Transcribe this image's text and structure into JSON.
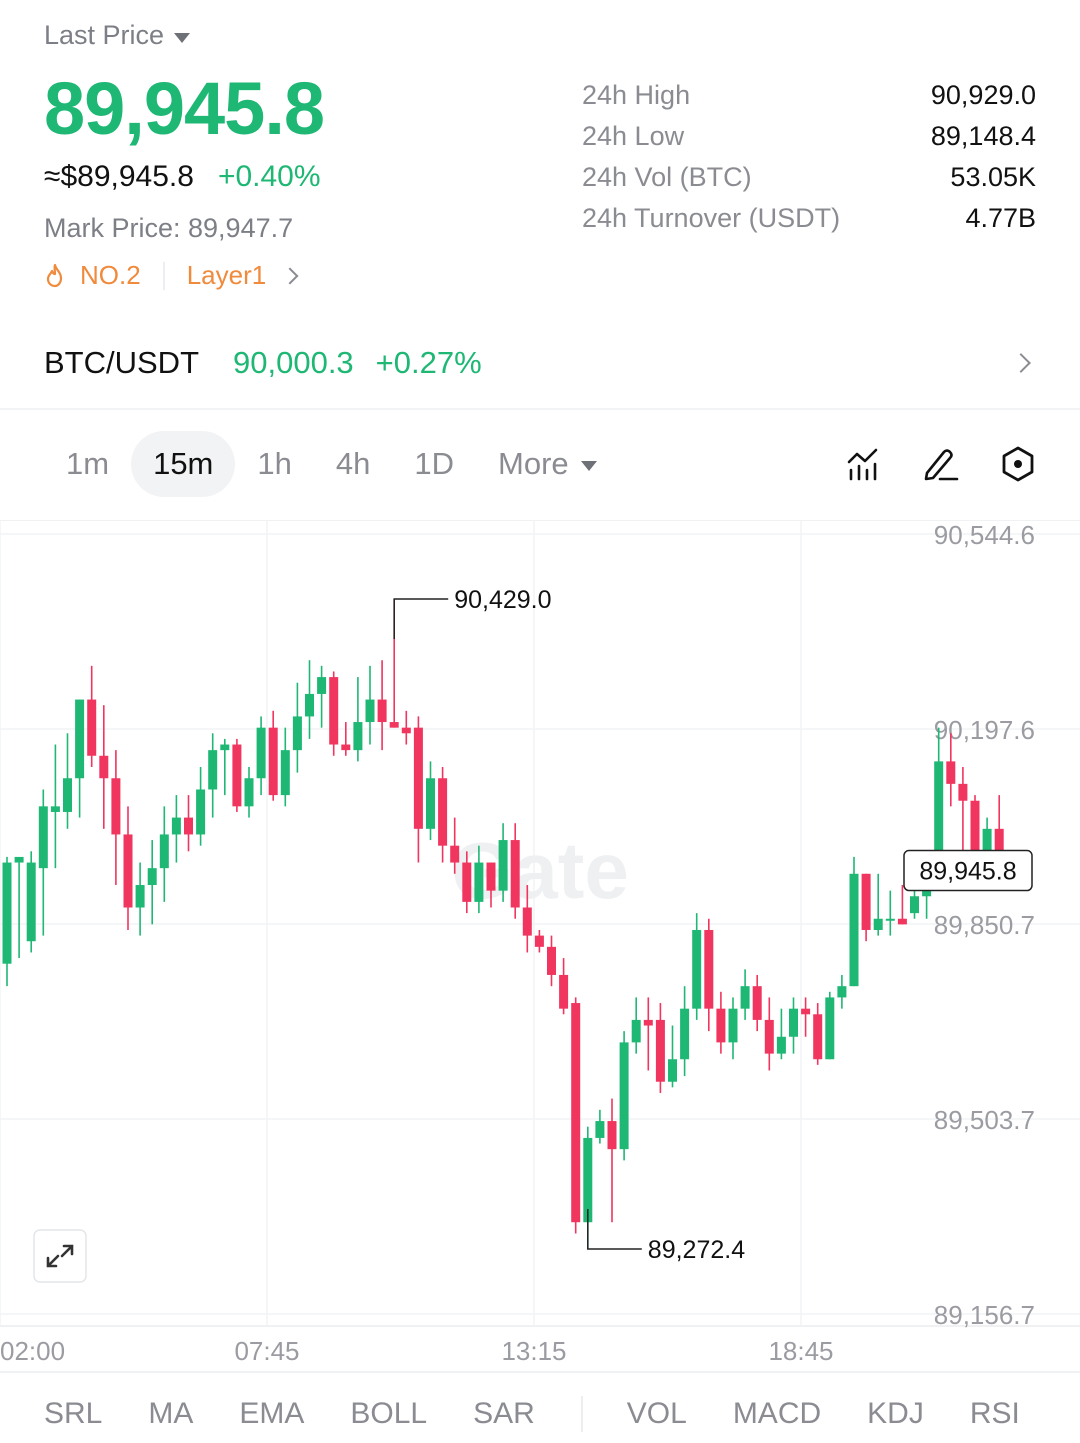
{
  "header": {
    "last_price_label": "Last Price",
    "last_price": "89,945.8",
    "approx_usd": "≈$89,945.8",
    "change_pct": "+0.40%",
    "mark_price": "Mark Price:  89,947.7",
    "rank_tag": "NO.2",
    "category_tag": "Layer1"
  },
  "stats": [
    {
      "label": "24h  High",
      "value": "90,929.0"
    },
    {
      "label": "24h  Low",
      "value": "89,148.4"
    },
    {
      "label": "24h  Vol (BTC)",
      "value": "53.05K"
    },
    {
      "label": "24h  Turnover (USDT)",
      "value": "4.77B"
    }
  ],
  "pair": {
    "name": "BTC/USDT",
    "price": "90,000.3",
    "change": "+0.27%"
  },
  "timeframes": {
    "items": [
      "1m",
      "15m",
      "1h",
      "4h",
      "1D"
    ],
    "active": "15m",
    "more_label": "More"
  },
  "indicators": {
    "main": [
      "SRL",
      "MA",
      "EMA",
      "BOLL",
      "SAR"
    ],
    "sub": [
      "VOL",
      "MACD",
      "KDJ",
      "RSI"
    ]
  },
  "colors": {
    "up": "#1eb774",
    "down": "#f0355f",
    "accent_orange": "#f08a3c"
  },
  "chart_data": {
    "type": "candlestick",
    "watermark": "Gate",
    "y_ticks": [
      "90,544.6",
      "90,197.6",
      "89,850.7",
      "89,503.7",
      "89,156.7"
    ],
    "y_tick_values": [
      90544.6,
      90197.6,
      89850.7,
      89503.7,
      89156.7
    ],
    "x_ticks": [
      "02:00",
      "07:45",
      "13:15",
      "18:45"
    ],
    "max_label": "90,429.0",
    "min_label": "89,272.4",
    "current_label": "89,945.8",
    "current_value": 89945.8,
    "candles": [
      [
        89780,
        89960,
        89740,
        89970
      ],
      [
        89960,
        89970,
        89790,
        89960
      ],
      [
        89820,
        89960,
        89800,
        89980
      ],
      [
        89950,
        90060,
        89830,
        90090
      ],
      [
        90050,
        90060,
        89950,
        90170
      ],
      [
        90050,
        90110,
        90020,
        90190
      ],
      [
        90110,
        90250,
        90040,
        90250
      ],
      [
        90250,
        90150,
        90130,
        90310
      ],
      [
        90150,
        90110,
        90020,
        90240
      ],
      [
        90110,
        90010,
        89920,
        90160
      ],
      [
        90010,
        89880,
        89840,
        90060
      ],
      [
        89880,
        89920,
        89830,
        89960
      ],
      [
        89920,
        89950,
        89850,
        90000
      ],
      [
        89950,
        90010,
        89890,
        90060
      ],
      [
        90010,
        90040,
        89960,
        90080
      ],
      [
        90040,
        90010,
        89980,
        90080
      ],
      [
        90010,
        90090,
        89990,
        90130
      ],
      [
        90090,
        90160,
        90040,
        90190
      ],
      [
        90160,
        90170,
        90080,
        90180
      ],
      [
        90170,
        90060,
        90050,
        90180
      ],
      [
        90060,
        90110,
        90040,
        90130
      ],
      [
        90110,
        90200,
        90080,
        90220
      ],
      [
        90200,
        90080,
        90070,
        90230
      ],
      [
        90080,
        90160,
        90060,
        90200
      ],
      [
        90160,
        90220,
        90120,
        90280
      ],
      [
        90220,
        90260,
        90180,
        90320
      ],
      [
        90260,
        90290,
        90200,
        90310
      ],
      [
        90290,
        90170,
        90150,
        90300
      ],
      [
        90170,
        90160,
        90150,
        90210
      ],
      [
        90160,
        90210,
        90140,
        90290
      ],
      [
        90210,
        90250,
        90170,
        90310
      ],
      [
        90250,
        90210,
        90160,
        90320
      ],
      [
        90210,
        90200,
        90200,
        90429
      ],
      [
        90200,
        90190,
        90170,
        90230
      ],
      [
        90200,
        90020,
        89960,
        90220
      ],
      [
        90020,
        90110,
        90000,
        90140
      ],
      [
        90110,
        89990,
        89960,
        90130
      ],
      [
        89990,
        89960,
        89940,
        90040
      ],
      [
        89960,
        89890,
        89870,
        89980
      ],
      [
        89890,
        89960,
        89870,
        89990
      ],
      [
        89960,
        89910,
        89880,
        89960
      ],
      [
        89910,
        90000,
        89890,
        90030
      ],
      [
        90000,
        89880,
        89860,
        90030
      ],
      [
        89880,
        89830,
        89800,
        89920
      ],
      [
        89830,
        89810,
        89800,
        89840
      ],
      [
        89810,
        89760,
        89740,
        89830
      ],
      [
        89760,
        89700,
        89690,
        89790
      ],
      [
        89710,
        89320,
        89300,
        89720
      ],
      [
        89320,
        89470,
        89272.4,
        89490
      ],
      [
        89470,
        89500,
        89460,
        89520
      ],
      [
        89500,
        89450,
        89320,
        89540
      ],
      [
        89450,
        89640,
        89430,
        89660
      ],
      [
        89640,
        89680,
        89620,
        89720
      ],
      [
        89680,
        89670,
        89590,
        89720
      ],
      [
        89680,
        89570,
        89550,
        89710
      ],
      [
        89570,
        89610,
        89560,
        89670
      ],
      [
        89610,
        89700,
        89580,
        89740
      ],
      [
        89700,
        89840,
        89680,
        89870
      ],
      [
        89840,
        89700,
        89660,
        89860
      ],
      [
        89700,
        89640,
        89620,
        89730
      ],
      [
        89640,
        89700,
        89610,
        89720
      ],
      [
        89700,
        89740,
        89680,
        89770
      ],
      [
        89740,
        89680,
        89660,
        89760
      ],
      [
        89680,
        89620,
        89590,
        89720
      ],
      [
        89620,
        89650,
        89610,
        89700
      ],
      [
        89650,
        89700,
        89620,
        89720
      ],
      [
        89700,
        89690,
        89650,
        89720
      ],
      [
        89690,
        89610,
        89600,
        89710
      ],
      [
        89610,
        89720,
        89610,
        89730
      ],
      [
        89720,
        89740,
        89700,
        89760
      ],
      [
        89740,
        89940,
        89740,
        89970
      ],
      [
        89940,
        89840,
        89820,
        89940
      ],
      [
        89840,
        89860,
        89830,
        89940
      ],
      [
        89860,
        89860,
        89830,
        89910
      ],
      [
        89860,
        89850,
        89850,
        89920
      ],
      [
        89870,
        89900,
        89860,
        89950
      ],
      [
        89900,
        89940,
        89860,
        89950
      ],
      [
        89950,
        90140,
        89950,
        90200
      ],
      [
        90140,
        90100,
        90060,
        90190
      ],
      [
        90100,
        90070,
        89980,
        90130
      ],
      [
        90070,
        89950,
        89940,
        90080
      ],
      [
        89950,
        90020,
        89920,
        90040
      ],
      [
        90020,
        89950,
        89940,
        90080
      ],
      [
        89950,
        89945.8,
        89940,
        89960
      ]
    ]
  }
}
